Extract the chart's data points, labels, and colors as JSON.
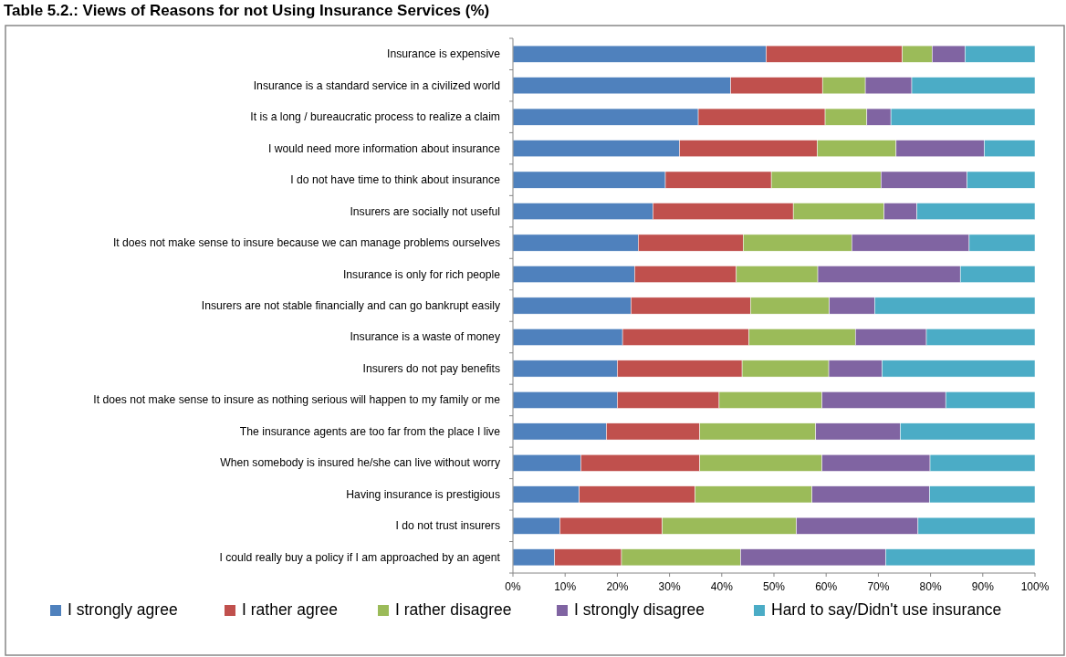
{
  "chart_data": {
    "type": "bar",
    "orientation": "horizontal",
    "stacked": true,
    "title": "Table 5.2.: Views of Reasons for not Using Insurance Services (%)",
    "categories": [
      "Insurance is expensive",
      "Insurance is a standard service in a civilized world",
      "It is a long / bureaucratic process to realize a claim",
      "I would need more information about insurance",
      "I do not have time to think about insurance",
      "Insurers are socially not useful",
      "It does not make sense to insure because we can manage problems ourselves",
      "Insurance is only for rich people",
      "Insurers are not stable financially and can go bankrupt easily",
      "Insurance is a waste of money",
      "Insurers do not pay benefits",
      "It does not make sense to insure as nothing serious will happen to my family or me",
      "The insurance agents are too far from the place I live",
      "When somebody is insured he/she can live without worry",
      "Having insurance is prestigious",
      "I do not trust insurers",
      "I could really buy a policy if I am approached by an agent"
    ],
    "series": [
      {
        "name": "I strongly agree",
        "color": "#4f81bd",
        "values": [
          48.5,
          41.7,
          35.5,
          31.9,
          29.2,
          26.8,
          24.0,
          23.3,
          22.6,
          21.0,
          20.0,
          20.0,
          17.9,
          13.0,
          12.7,
          9.0,
          8.0
        ]
      },
      {
        "name": "I rather agree",
        "color": "#c0504d",
        "values": [
          26.1,
          17.6,
          24.3,
          26.4,
          20.3,
          26.9,
          20.1,
          19.5,
          22.9,
          24.2,
          23.9,
          19.5,
          17.9,
          22.8,
          22.2,
          19.6,
          12.8
        ]
      },
      {
        "name": "I rather disagree",
        "color": "#9bbb59",
        "values": [
          5.7,
          8.2,
          8.0,
          15.1,
          21.0,
          17.4,
          20.8,
          15.6,
          15.1,
          20.4,
          16.6,
          19.7,
          22.2,
          23.4,
          22.4,
          25.7,
          22.8
        ]
      },
      {
        "name": "I strongly disagree",
        "color": "#8064a2",
        "values": [
          6.3,
          8.9,
          4.6,
          16.9,
          16.5,
          6.3,
          22.5,
          27.3,
          8.7,
          13.6,
          10.2,
          23.7,
          16.2,
          20.7,
          22.5,
          23.3,
          27.8
        ]
      },
      {
        "name": "Hard to say/Didn't use insurance",
        "color": "#4bacc6",
        "values": [
          13.4,
          23.6,
          27.6,
          9.7,
          13.0,
          22.6,
          12.6,
          14.3,
          30.7,
          20.8,
          29.3,
          17.1,
          25.8,
          20.1,
          20.2,
          22.4,
          28.6
        ]
      }
    ],
    "xlim": [
      0,
      100
    ],
    "xticks": [
      {
        "value": 0,
        "label": "0%"
      },
      {
        "value": 10,
        "label": "10%"
      },
      {
        "value": 20,
        "label": "20%"
      },
      {
        "value": 30,
        "label": "30%"
      },
      {
        "value": 40,
        "label": "40%"
      },
      {
        "value": 50,
        "label": "50%"
      },
      {
        "value": 60,
        "label": "60%"
      },
      {
        "value": 70,
        "label": "70%"
      },
      {
        "value": 80,
        "label": "80%"
      },
      {
        "value": 90,
        "label": "90%"
      },
      {
        "value": 100,
        "label": "100%"
      }
    ],
    "legend": "bottom",
    "grid": false
  }
}
